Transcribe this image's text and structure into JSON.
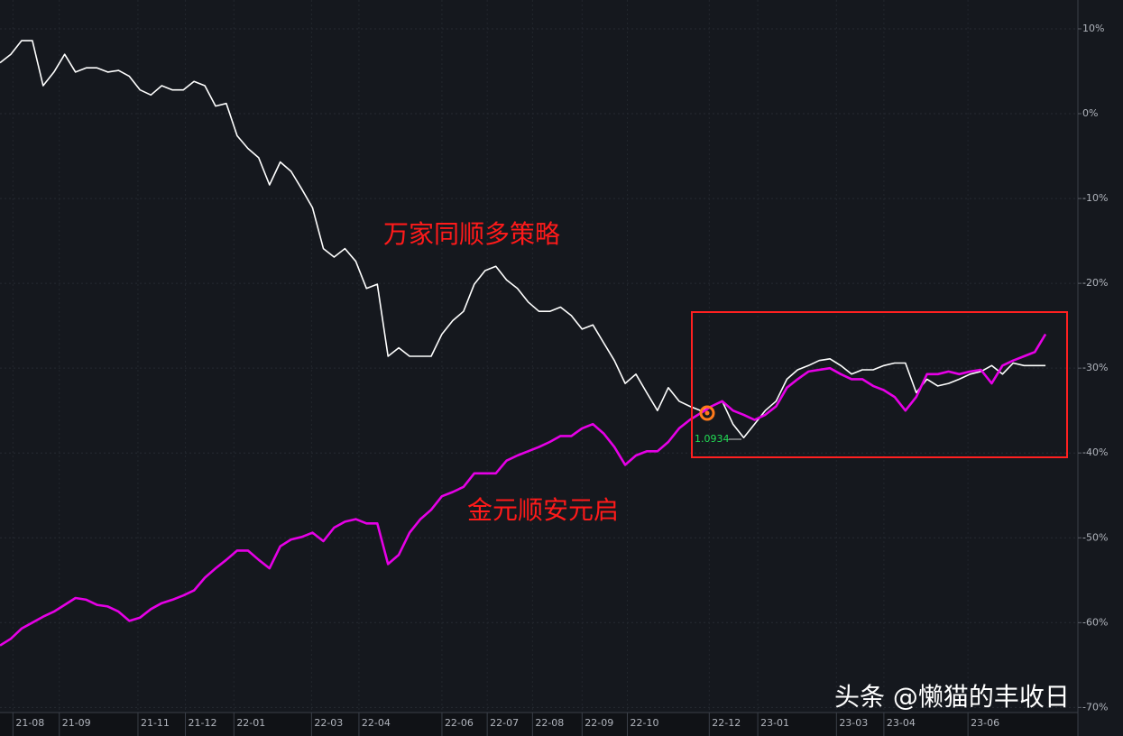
{
  "chart_data": {
    "type": "line",
    "x": [
      0,
      1,
      2,
      3,
      4,
      5,
      6,
      7,
      8,
      9,
      10,
      11,
      12,
      13,
      14,
      15,
      16,
      17,
      18,
      19,
      20,
      21,
      22,
      23,
      24,
      25,
      26,
      27,
      28,
      29,
      30,
      31,
      32,
      33,
      34,
      35,
      36,
      37,
      38,
      39,
      40,
      41,
      42,
      43,
      44,
      45,
      46,
      47,
      48,
      49,
      50,
      51,
      52,
      53,
      54,
      55,
      56,
      57,
      58,
      59,
      60,
      61,
      62,
      63,
      64,
      65,
      66,
      67,
      68,
      69,
      70,
      71,
      72,
      73,
      74,
      75,
      76,
      77,
      78,
      79,
      80,
      81,
      82,
      83,
      84,
      85,
      86,
      87,
      88,
      89,
      90,
      91,
      92,
      93,
      94,
      95,
      96,
      97
    ],
    "xlim": [
      0,
      100
    ],
    "xticks": [
      {
        "value": 1.2,
        "label": "21-08"
      },
      {
        "value": 5.5,
        "label": "21-09"
      },
      {
        "value": 12.8,
        "label": "21-11"
      },
      {
        "value": 17.2,
        "label": "21-12"
      },
      {
        "value": 21.7,
        "label": "22-01"
      },
      {
        "value": 28.9,
        "label": "22-03"
      },
      {
        "value": 33.3,
        "label": "22-04"
      },
      {
        "value": 41.0,
        "label": "22-06"
      },
      {
        "value": 45.2,
        "label": "22-07"
      },
      {
        "value": 49.4,
        "label": "22-08"
      },
      {
        "value": 54.0,
        "label": "22-09"
      },
      {
        "value": 58.2,
        "label": "22-10"
      },
      {
        "value": 65.8,
        "label": "22-12"
      },
      {
        "value": 70.3,
        "label": "23-01"
      },
      {
        "value": 77.6,
        "label": "23-03"
      },
      {
        "value": 82.0,
        "label": "23-04"
      },
      {
        "value": 89.8,
        "label": "23-06"
      }
    ],
    "ylim": [
      -70.6,
      13.4
    ],
    "yticks": [
      {
        "value": 10,
        "label": "10%"
      },
      {
        "value": 0,
        "label": "0%"
      },
      {
        "value": -10,
        "label": "-10%"
      },
      {
        "value": -20,
        "label": "-20%"
      },
      {
        "value": -30,
        "label": "-30%"
      },
      {
        "value": -40,
        "label": "-40%"
      },
      {
        "value": -50,
        "label": "-50%"
      },
      {
        "value": -60,
        "label": "-60%"
      },
      {
        "value": -70,
        "label": "-70%"
      }
    ],
    "grid": true,
    "series": [
      {
        "name": "万家同顺多策略",
        "color": "#ffffff",
        "values": [
          6,
          7.0,
          8.6,
          8.6,
          3.3,
          4.9,
          7.0,
          4.9,
          5.4,
          5.4,
          4.9,
          5.1,
          4.4,
          2.8,
          2.2,
          3.3,
          2.8,
          2.8,
          3.8,
          3.3,
          0.9,
          1.2,
          -2.6,
          -4.1,
          -5.2,
          -8.4,
          -5.7,
          -6.8,
          -8.9,
          -11.1,
          -15.9,
          -16.9,
          -15.9,
          -17.4,
          -20.6,
          -20.1,
          -28.6,
          -27.6,
          -28.6,
          -28.6,
          -28.6,
          -26.0,
          -24.4,
          -23.3,
          -20.1,
          -18.5,
          -18.0,
          -19.6,
          -20.6,
          -22.2,
          -23.3,
          -23.3,
          -22.8,
          -23.8,
          -25.4,
          -24.9,
          -27.0,
          -29.1,
          -31.8,
          -30.7,
          -32.9,
          -35.0,
          -32.3,
          -33.9,
          -34.5,
          -35.0,
          -34.5,
          -33.9,
          -36.6,
          -38.2,
          -36.6,
          -35.0,
          -33.9,
          -31.3,
          -30.2,
          -29.7,
          -29.1,
          -28.9,
          -29.7,
          -30.7,
          -30.2,
          -30.2,
          -29.7,
          -29.4,
          -29.4,
          -32.9,
          -31.3,
          -32.1,
          -31.8,
          -31.3,
          -30.7,
          -30.4,
          -29.7,
          -30.7,
          -29.4,
          -29.7,
          -29.7,
          -29.7
        ]
      },
      {
        "name": "金元顺安元启",
        "color": "#e600e6",
        "values": [
          -62.7,
          -61.9,
          -60.7,
          -60.0,
          -59.3,
          -58.7,
          -57.9,
          -57.1,
          -57.3,
          -57.9,
          -58.1,
          -58.7,
          -59.8,
          -59.4,
          -58.4,
          -57.7,
          -57.3,
          -56.8,
          -56.2,
          -54.7,
          -53.6,
          -52.6,
          -51.5,
          -51.5,
          -52.6,
          -53.6,
          -51.0,
          -50.2,
          -49.9,
          -49.4,
          -50.4,
          -48.8,
          -48.1,
          -47.8,
          -48.3,
          -48.3,
          -53.1,
          -52.0,
          -49.4,
          -47.8,
          -46.7,
          -45.1,
          -44.6,
          -44.0,
          -42.4,
          -42.4,
          -42.4,
          -40.9,
          -40.3,
          -39.8,
          -39.3,
          -38.7,
          -38.0,
          -38.0,
          -37.1,
          -36.6,
          -37.7,
          -39.3,
          -41.4,
          -40.3,
          -39.8,
          -39.8,
          -38.7,
          -37.1,
          -36.1,
          -35.3,
          -34.5,
          -33.9,
          -35.0,
          -35.5,
          -36.1,
          -35.5,
          -34.5,
          -32.3,
          -31.3,
          -30.4,
          -30.2,
          -30.0,
          -30.7,
          -31.3,
          -31.3,
          -32.1,
          -32.6,
          -33.4,
          -35.0,
          -33.4,
          -30.7,
          -30.7,
          -30.4,
          -30.7,
          -30.4,
          -30.2,
          -31.8,
          -29.7,
          -29.1,
          -28.6,
          -28.1,
          -26.0
        ]
      }
    ],
    "annotations": [
      {
        "text": "1.0934"
      }
    ],
    "watermark": "头条 @懒猫的丰收日"
  }
}
